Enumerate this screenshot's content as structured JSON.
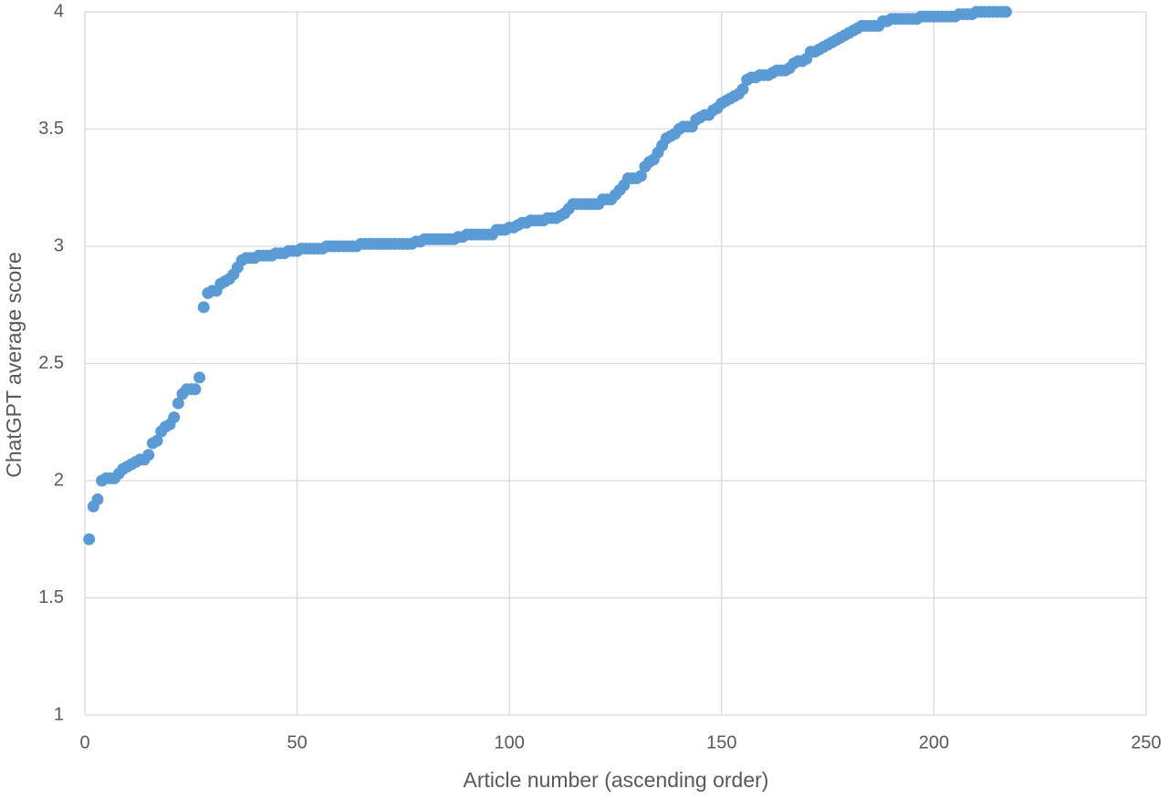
{
  "chart_data": {
    "type": "scatter",
    "x_label": "Article number (ascending order)",
    "y_label": "ChatGPT average score",
    "color": "#5b9bd5",
    "grid": true,
    "xlim": [
      0,
      250
    ],
    "xticks": [
      0,
      50,
      100,
      150,
      200,
      250
    ],
    "ylim": [
      1,
      4
    ],
    "yticks": [
      1,
      1.5,
      2,
      2.5,
      3,
      3.5,
      4
    ],
    "x": [
      1,
      2,
      3,
      4,
      5,
      6,
      7,
      8,
      9,
      10,
      11,
      12,
      13,
      14,
      15,
      16,
      17,
      18,
      19,
      20,
      21,
      22,
      23,
      24,
      25,
      26,
      27,
      28,
      29,
      30,
      31,
      32,
      33,
      34,
      35,
      36,
      37,
      38,
      39,
      40,
      41,
      42,
      43,
      44,
      45,
      46,
      47,
      48,
      49,
      50,
      51,
      52,
      53,
      54,
      55,
      56,
      57,
      58,
      59,
      60,
      61,
      62,
      63,
      64,
      65,
      66,
      67,
      68,
      69,
      70,
      71,
      72,
      73,
      74,
      75,
      76,
      77,
      78,
      79,
      80,
      81,
      82,
      83,
      84,
      85,
      86,
      87,
      88,
      89,
      90,
      91,
      92,
      93,
      94,
      95,
      96,
      97,
      98,
      99,
      100,
      101,
      102,
      103,
      104,
      105,
      106,
      107,
      108,
      109,
      110,
      111,
      112,
      113,
      114,
      115,
      116,
      117,
      118,
      119,
      120,
      121,
      122,
      123,
      124,
      125,
      126,
      127,
      128,
      129,
      130,
      131,
      132,
      133,
      134,
      135,
      136,
      137,
      138,
      139,
      140,
      141,
      142,
      143,
      144,
      145,
      146,
      147,
      148,
      149,
      150,
      151,
      152,
      153,
      154,
      155,
      156,
      157,
      158,
      159,
      160,
      161,
      162,
      163,
      164,
      165,
      166,
      167,
      168,
      169,
      170,
      171,
      172,
      173,
      174,
      175,
      176,
      177,
      178,
      179,
      180,
      181,
      182,
      183,
      184,
      185,
      186,
      187,
      188,
      189,
      190,
      191,
      192,
      193,
      194,
      195,
      196,
      197,
      198,
      199,
      200,
      201,
      202,
      203,
      204,
      205,
      206,
      207,
      208,
      209,
      210,
      211,
      212,
      213,
      214,
      215,
      216,
      217
    ],
    "values": [
      1.75,
      1.89,
      1.92,
      2.0,
      2.01,
      2.01,
      2.01,
      2.03,
      2.05,
      2.06,
      2.07,
      2.08,
      2.09,
      2.09,
      2.11,
      2.16,
      2.17,
      2.21,
      2.23,
      2.24,
      2.27,
      2.33,
      2.37,
      2.39,
      2.39,
      2.39,
      2.44,
      2.74,
      2.8,
      2.81,
      2.81,
      2.84,
      2.85,
      2.86,
      2.88,
      2.91,
      2.94,
      2.95,
      2.95,
      2.95,
      2.96,
      2.96,
      2.96,
      2.96,
      2.97,
      2.97,
      2.97,
      2.98,
      2.98,
      2.98,
      2.99,
      2.99,
      2.99,
      2.99,
      2.99,
      2.99,
      3.0,
      3.0,
      3.0,
      3.0,
      3.0,
      3.0,
      3.0,
      3.0,
      3.01,
      3.01,
      3.01,
      3.01,
      3.01,
      3.01,
      3.01,
      3.01,
      3.01,
      3.01,
      3.01,
      3.01,
      3.01,
      3.02,
      3.02,
      3.03,
      3.03,
      3.03,
      3.03,
      3.03,
      3.03,
      3.03,
      3.03,
      3.04,
      3.04,
      3.05,
      3.05,
      3.05,
      3.05,
      3.05,
      3.05,
      3.05,
      3.07,
      3.07,
      3.07,
      3.08,
      3.08,
      3.09,
      3.1,
      3.1,
      3.11,
      3.11,
      3.11,
      3.11,
      3.12,
      3.12,
      3.12,
      3.13,
      3.14,
      3.16,
      3.18,
      3.18,
      3.18,
      3.18,
      3.18,
      3.18,
      3.18,
      3.2,
      3.2,
      3.2,
      3.22,
      3.24,
      3.26,
      3.29,
      3.29,
      3.29,
      3.3,
      3.34,
      3.36,
      3.37,
      3.4,
      3.43,
      3.46,
      3.47,
      3.48,
      3.5,
      3.51,
      3.51,
      3.51,
      3.54,
      3.55,
      3.56,
      3.56,
      3.58,
      3.59,
      3.61,
      3.62,
      3.63,
      3.64,
      3.65,
      3.67,
      3.71,
      3.72,
      3.72,
      3.73,
      3.73,
      3.73,
      3.74,
      3.75,
      3.75,
      3.75,
      3.76,
      3.78,
      3.79,
      3.79,
      3.8,
      3.83,
      3.83,
      3.84,
      3.85,
      3.86,
      3.87,
      3.88,
      3.89,
      3.9,
      3.91,
      3.92,
      3.93,
      3.94,
      3.94,
      3.94,
      3.94,
      3.94,
      3.96,
      3.96,
      3.97,
      3.97,
      3.97,
      3.97,
      3.97,
      3.97,
      3.97,
      3.98,
      3.98,
      3.98,
      3.98,
      3.98,
      3.98,
      3.98,
      3.98,
      3.98,
      3.99,
      3.99,
      3.99,
      3.99,
      4.0,
      4.0,
      4.0,
      4.0,
      4.0,
      4.0,
      4.0,
      4.0
    ]
  }
}
